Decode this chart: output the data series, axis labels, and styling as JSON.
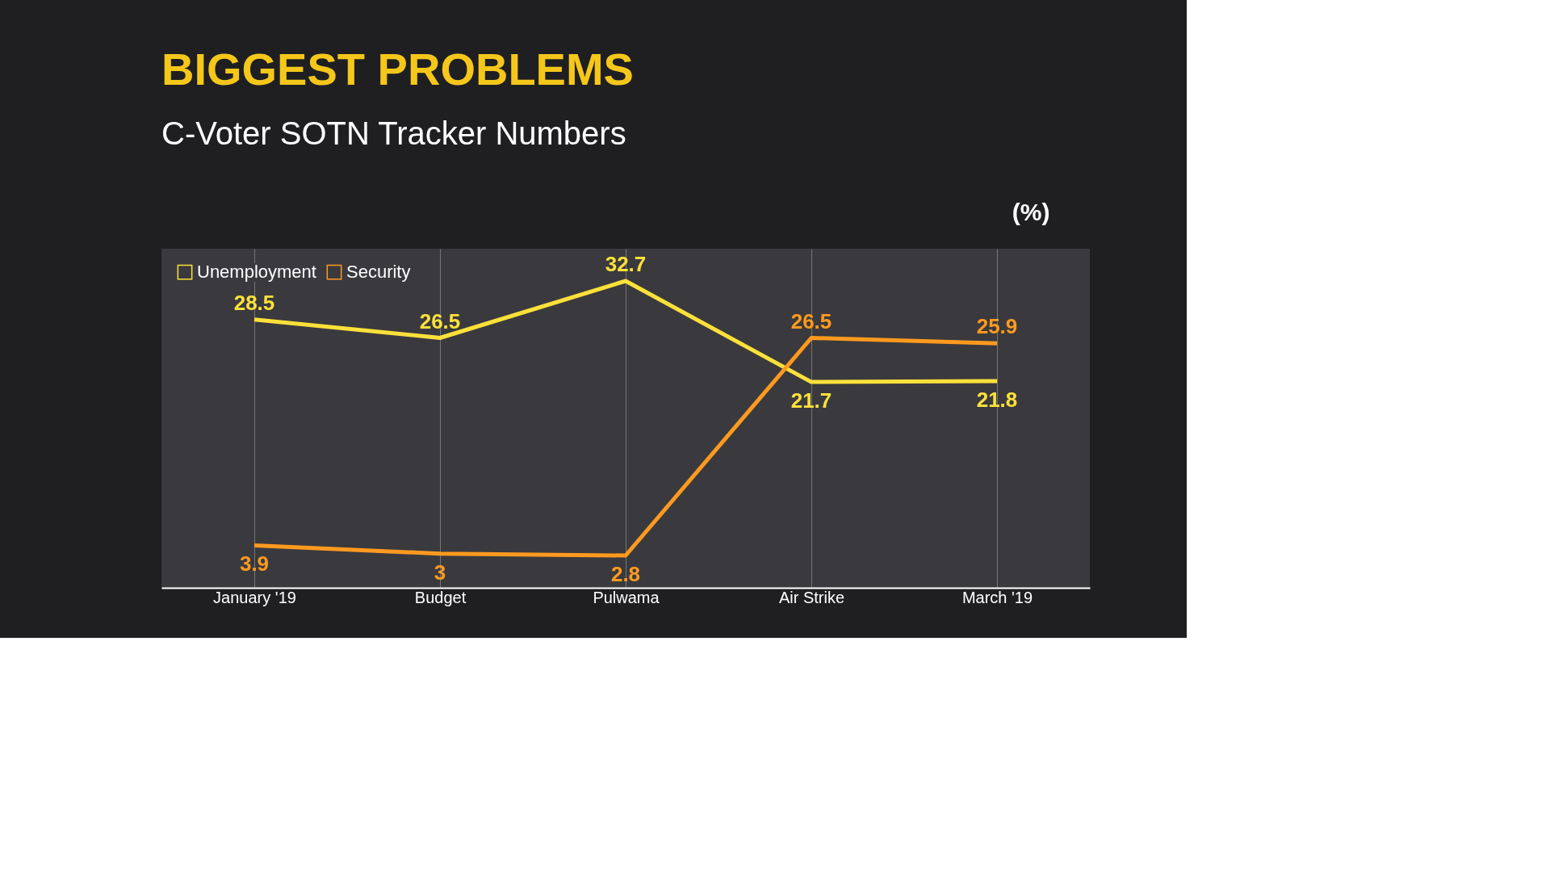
{
  "chart_data": {
    "type": "line",
    "title": "BIGGEST PROBLEMS",
    "subtitle": "C-Voter SOTN Tracker Numbers",
    "ylabel": "(%)",
    "categories": [
      "January '19",
      "Budget",
      "Pulwama",
      "Air Strike",
      "March '19"
    ],
    "series": [
      {
        "name": "Unemployment",
        "color": "#fde13a",
        "values": [
          28.5,
          26.5,
          32.7,
          21.7,
          21.8
        ]
      },
      {
        "name": "Security",
        "color": "#ff9a1f",
        "values": [
          3.9,
          3,
          2.8,
          26.5,
          25.9
        ]
      }
    ],
    "data_labels": true,
    "legend": "top left",
    "grid": "x",
    "marker": "none",
    "line_style": "solid"
  }
}
